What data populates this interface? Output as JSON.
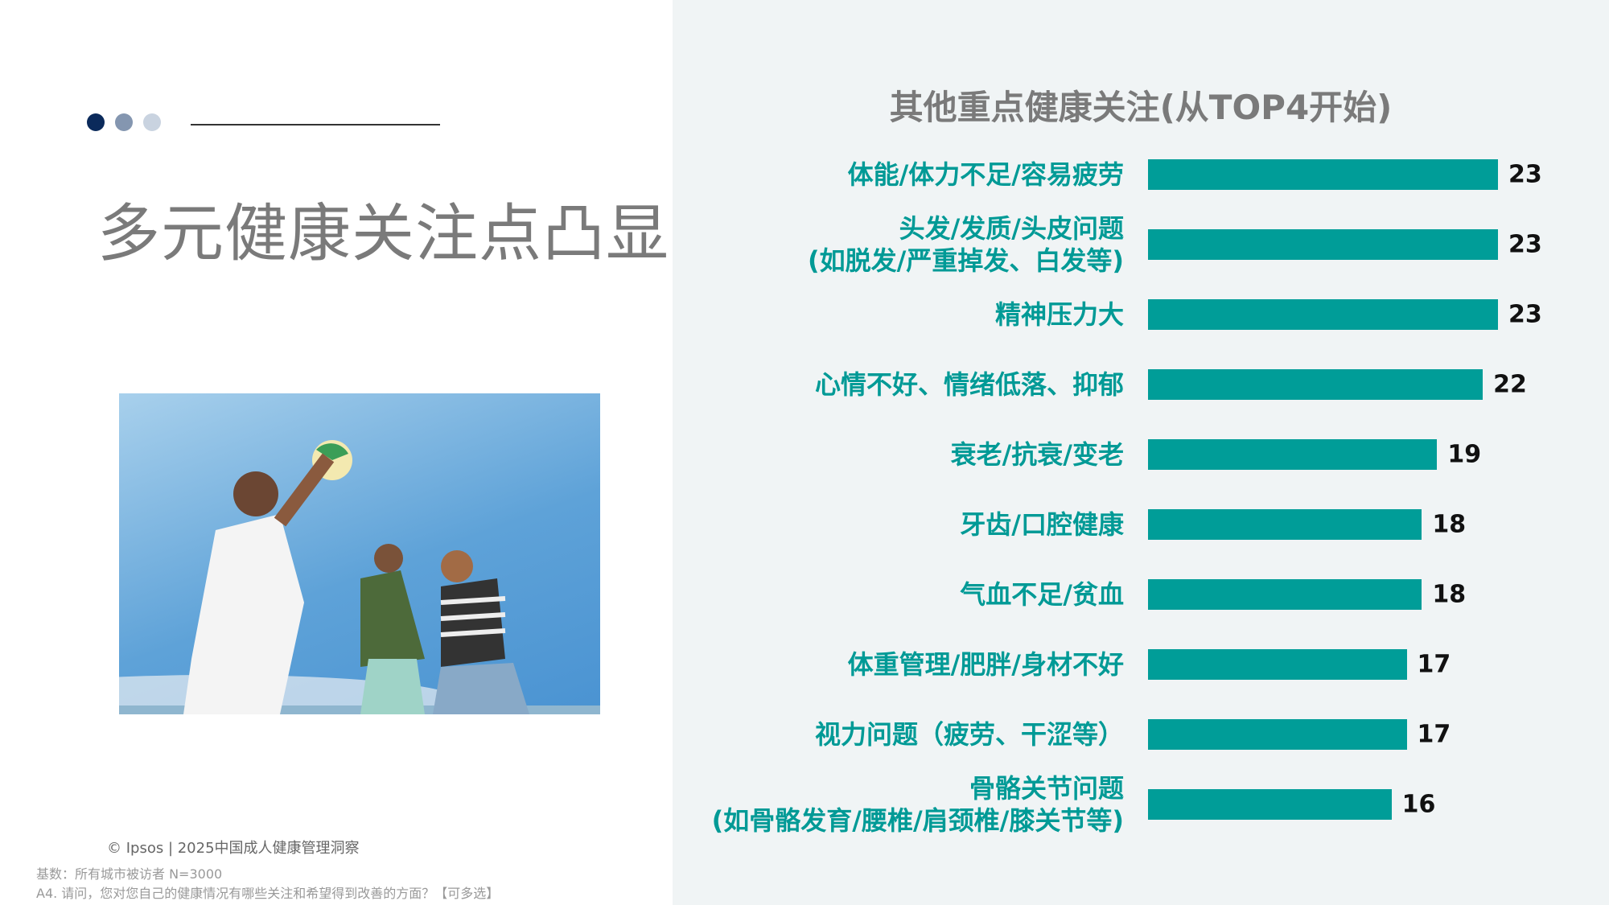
{
  "left": {
    "title": "多元健康关注点凸显",
    "dot_colors": [
      "#0b2a5b",
      "#8496b0",
      "#c9d3e0"
    ],
    "copyright": "© Ipsos | 2025中国成人健康管理洞察",
    "base_note": "基数：所有城市被访者  N=3000",
    "question": "A4. 请问，您对您自己的健康情况有哪些关注和希望得到改善的方面？【可多选】"
  },
  "chart_data": {
    "type": "bar",
    "orientation": "horizontal",
    "title": "其他重点健康关注(从TOP4开始)",
    "categories": [
      [
        "体能/体力不足/容易疲劳"
      ],
      [
        "头发/发质/头皮问题",
        "(如脱发/严重掉发、白发等)"
      ],
      [
        "精神压力大"
      ],
      [
        "心情不好、情绪低落、抑郁"
      ],
      [
        "衰老/抗衰/变老"
      ],
      [
        "牙齿/口腔健康"
      ],
      [
        "气血不足/贫血"
      ],
      [
        "体重管理/肥胖/身材不好"
      ],
      [
        "视力问题（疲劳、干涩等）"
      ],
      [
        "骨骼关节问题",
        "(如骨骼发育/腰椎/肩颈椎/膝关节等)"
      ]
    ],
    "values": [
      23,
      23,
      23,
      22,
      19,
      18,
      18,
      17,
      17,
      16
    ],
    "bar_color": "#009d98",
    "label_color": "#009a96",
    "grid": false
  }
}
